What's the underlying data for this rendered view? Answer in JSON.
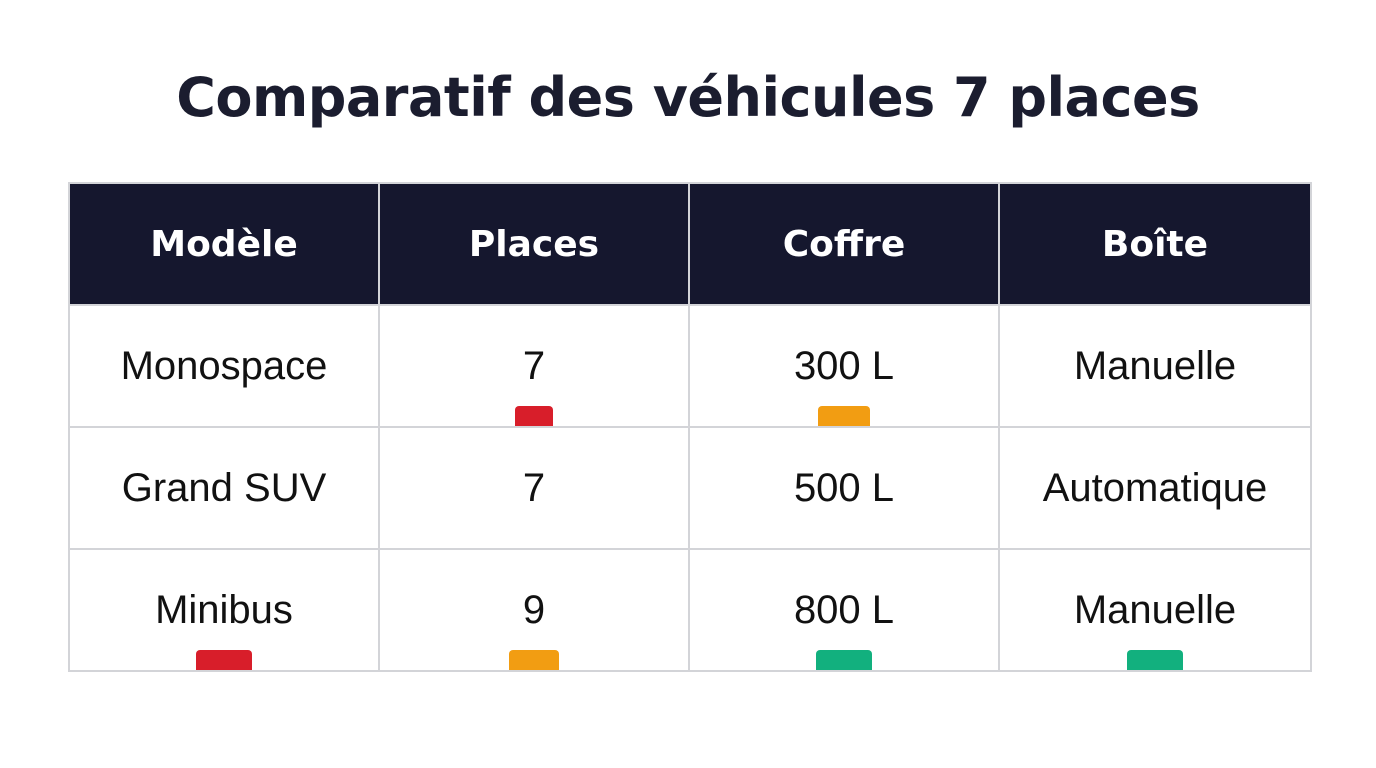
{
  "title": "Comparatif des véhicules 7 places",
  "table": {
    "headers": [
      "Modèle",
      "Places",
      "Coffre",
      "Boîte"
    ],
    "rows": [
      [
        "Monospace",
        "7",
        "300 L",
        "Manuelle"
      ],
      [
        "Grand SUV",
        "7",
        "500 L",
        "Automatique"
      ],
      [
        "Minibus",
        "9",
        "800 L",
        "Manuelle"
      ]
    ],
    "marker_colors": {
      "red": "#d81e2a",
      "orange": "#f29d12",
      "green": "#12b07e"
    }
  }
}
